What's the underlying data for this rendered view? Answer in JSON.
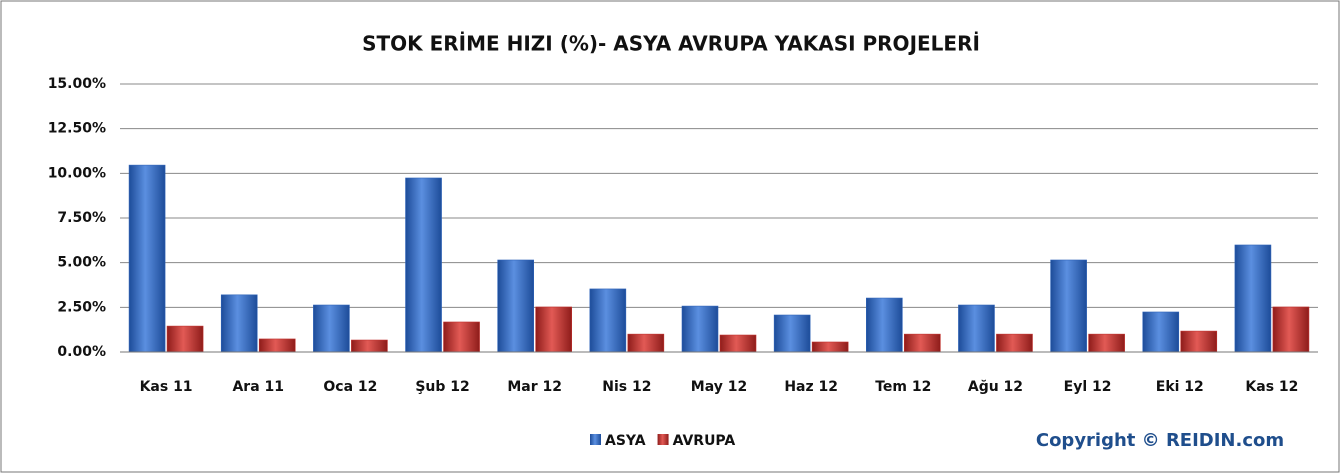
{
  "chart_data": {
    "type": "bar",
    "title": "STOK ERİME HIZI (%)- ASYA AVRUPA YAKASI PROJELERİ",
    "annotation": "Copyright © REIDIN.com",
    "categories": [
      "Kas 11",
      "Ara 11",
      "Oca 12",
      "Şub 12",
      "Mar 12",
      "Nis 12",
      "May 12",
      "Haz 12",
      "Tem 12",
      "Ağu 12",
      "Eyl 12",
      "Eki 12",
      "Kas 12"
    ],
    "series": [
      {
        "name": "ASYA",
        "color": "#2f63b8",
        "values": [
          10.46,
          3.2,
          2.63,
          9.74,
          5.15,
          3.53,
          2.57,
          2.07,
          3.02,
          2.63,
          5.15,
          2.24,
          5.99
        ]
      },
      {
        "name": "AVRUPA",
        "color": "#c0302c",
        "values": [
          1.45,
          0.73,
          0.67,
          1.68,
          2.52,
          1.0,
          0.95,
          0.56,
          1.0,
          1.0,
          1.0,
          1.17,
          2.52
        ]
      }
    ],
    "ylim": [
      0,
      15
    ],
    "yticks": [
      {
        "value": 0,
        "label": "0.00%"
      },
      {
        "value": 2.5,
        "label": "2.50%"
      },
      {
        "value": 5,
        "label": "5.00%"
      },
      {
        "value": 7.5,
        "label": "7.50%"
      },
      {
        "value": 10,
        "label": "10.00%"
      },
      {
        "value": 12.5,
        "label": "12.50%"
      },
      {
        "value": 15,
        "label": "15.00%"
      }
    ],
    "grid": true,
    "legend": "bottom"
  }
}
